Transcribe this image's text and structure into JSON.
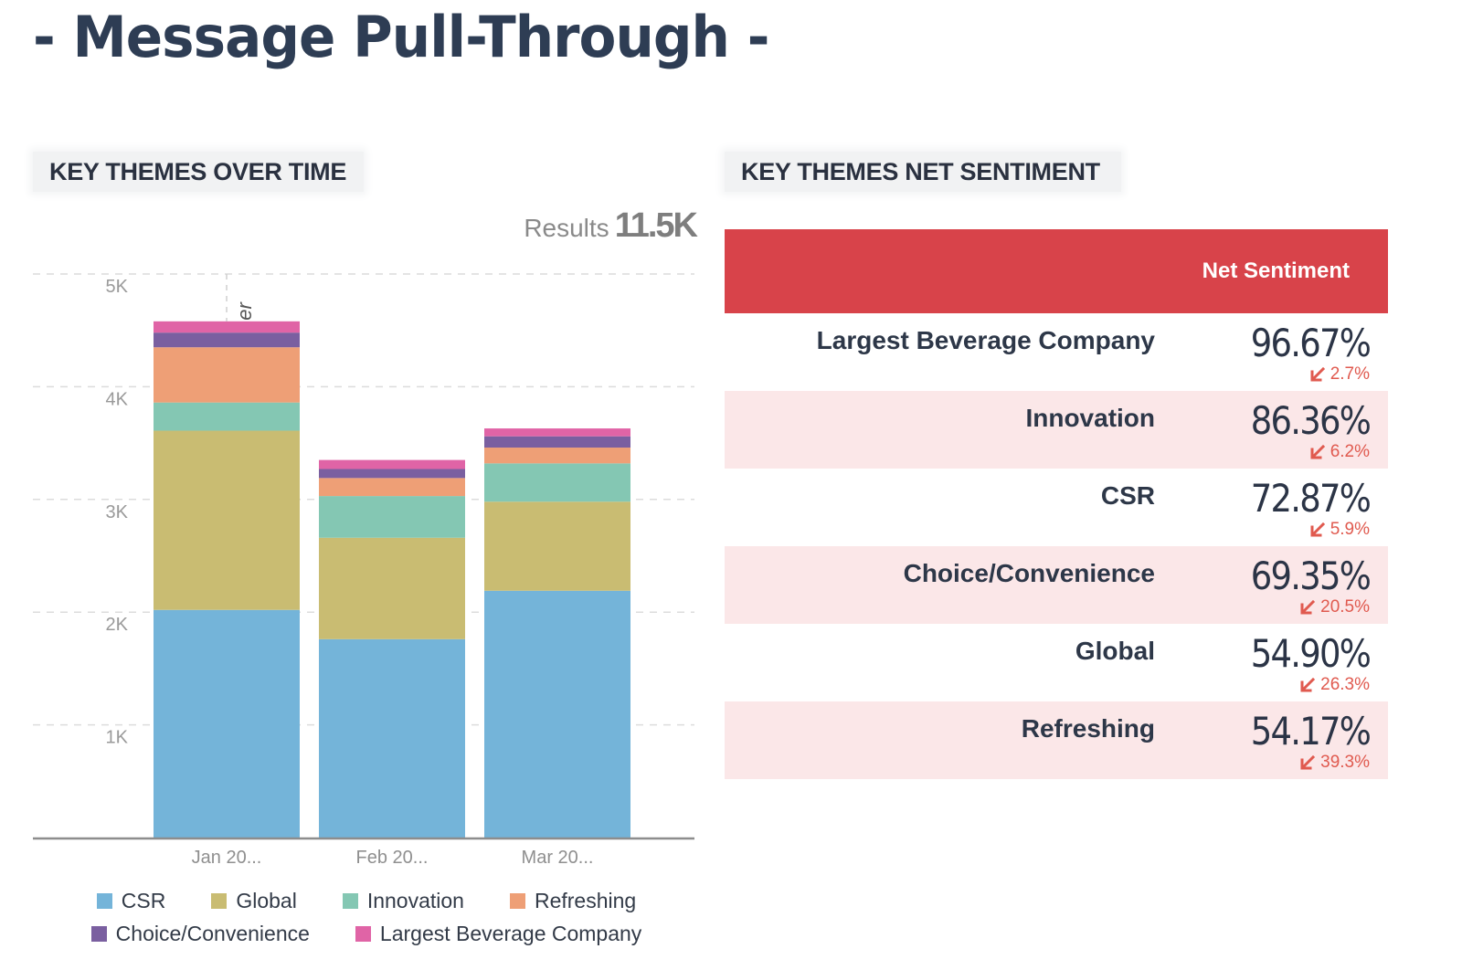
{
  "page": {
    "title": "- Message Pull-Through -"
  },
  "left_panel": {
    "header": "KEY THEMES OVER TIME",
    "results_label": "Results",
    "results_value": "11.5K",
    "artifact_text": "er"
  },
  "right_panel": {
    "header": "KEY THEMES NET SENTIMENT",
    "column_header": "Net Sentiment",
    "accent_color": "#d8434a",
    "rows": [
      {
        "label": "Largest Beverage Company",
        "value": "96.67%",
        "change": "2.7%",
        "direction": "down"
      },
      {
        "label": "Innovation",
        "value": "86.36%",
        "change": "6.2%",
        "direction": "down"
      },
      {
        "label": "CSR",
        "value": "72.87%",
        "change": "5.9%",
        "direction": "down"
      },
      {
        "label": "Choice/Convenience",
        "value": "69.35%",
        "change": "20.5%",
        "direction": "down"
      },
      {
        "label": "Global",
        "value": "54.90%",
        "change": "26.3%",
        "direction": "down"
      },
      {
        "label": "Refreshing",
        "value": "54.17%",
        "change": "39.3%",
        "direction": "down"
      }
    ]
  },
  "chart_data": {
    "type": "bar",
    "stacked": true,
    "title": "KEY THEMES OVER TIME",
    "xlabel": "",
    "ylabel": "",
    "categories": [
      "Jan 20...",
      "Feb 20...",
      "Mar 20..."
    ],
    "ylim": [
      0,
      5000
    ],
    "yticks": [
      1000,
      2000,
      3000,
      4000,
      5000
    ],
    "ytick_labels": [
      "1K",
      "2K",
      "3K",
      "4K",
      "5K"
    ],
    "grid": true,
    "legend_position": "bottom",
    "series": [
      {
        "name": "CSR",
        "color": "#74b4d9",
        "values": [
          2020,
          1760,
          2190
        ]
      },
      {
        "name": "Global",
        "color": "#c9bc72",
        "values": [
          1590,
          900,
          790
        ]
      },
      {
        "name": "Innovation",
        "color": "#84c7b3",
        "values": [
          250,
          370,
          340
        ]
      },
      {
        "name": "Refreshing",
        "color": "#ee9f76",
        "values": [
          490,
          160,
          140
        ]
      },
      {
        "name": "Choice/Convenience",
        "color": "#7a5fa0",
        "values": [
          130,
          80,
          100
        ]
      },
      {
        "name": "Largest Beverage Company",
        "color": "#e064a6",
        "values": [
          100,
          80,
          70
        ]
      }
    ],
    "legend_rows": [
      [
        "CSR",
        "Global",
        "Innovation",
        "Refreshing"
      ],
      [
        "Choice/Convenience",
        "Largest Beverage Company"
      ]
    ]
  }
}
